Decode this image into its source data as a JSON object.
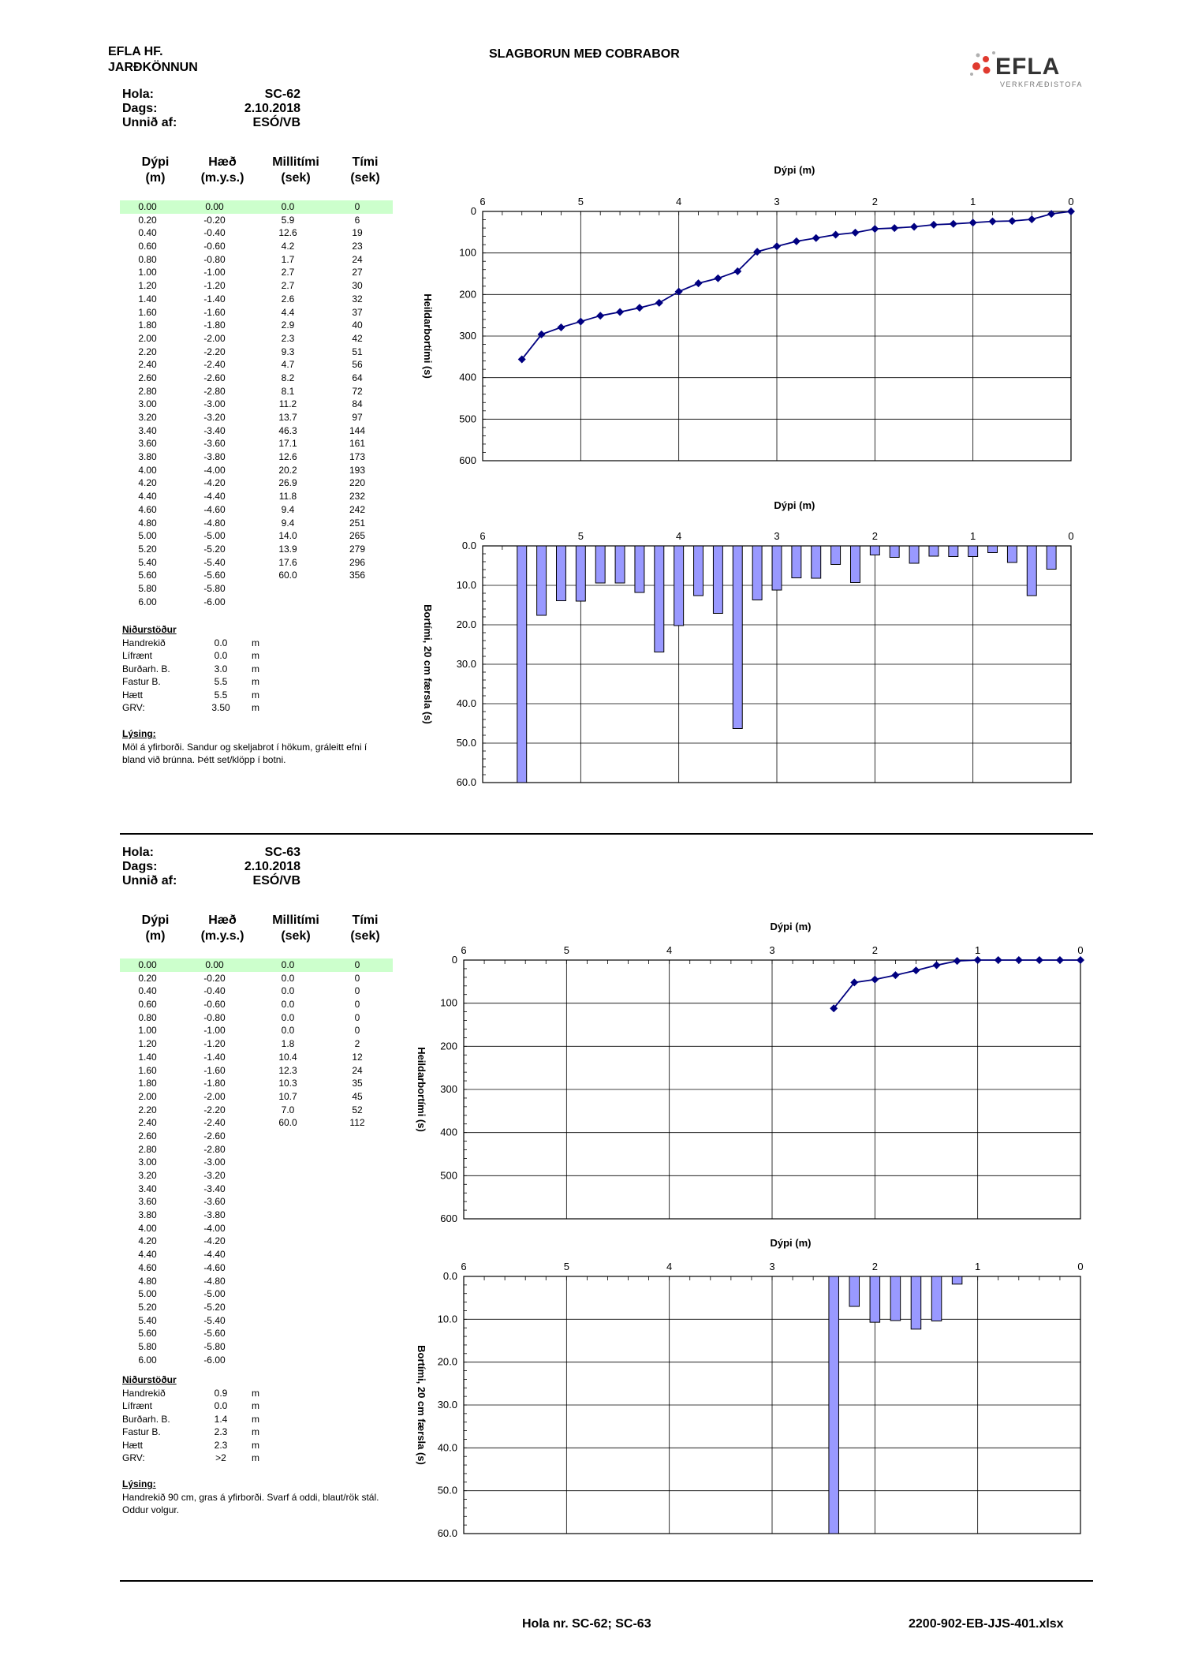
{
  "header": {
    "company": "EFLA HF.",
    "department": "JARÐKÖNNUN",
    "title": "SLAGBORUN MEÐ COBRABOR",
    "logo_text": "EFLA",
    "logo_sub": "VERKFRÆÐISTOFA"
  },
  "labels": {
    "hola": "Hola:",
    "dags": "Dags:",
    "unnid": "Unnið af:",
    "col_depth_1": "Dýpi",
    "col_depth_2": "(m)",
    "col_height_1": "Hæð",
    "col_height_2": "(m.y.s.)",
    "col_inter_1": "Millitími",
    "col_inter_2": "(sek)",
    "col_time_1": "Tími",
    "col_time_2": "(sek)",
    "results_title": "Niðurstöður",
    "description_title": "Lýsing:"
  },
  "holes": [
    {
      "id": "SC-62",
      "date": "2.10.2018",
      "by": "ESÓ/VB",
      "table": [
        [
          "0.00",
          "0.00",
          "0.0",
          "0"
        ],
        [
          "0.20",
          "-0.20",
          "5.9",
          "6"
        ],
        [
          "0.40",
          "-0.40",
          "12.6",
          "19"
        ],
        [
          "0.60",
          "-0.60",
          "4.2",
          "23"
        ],
        [
          "0.80",
          "-0.80",
          "1.7",
          "24"
        ],
        [
          "1.00",
          "-1.00",
          "2.7",
          "27"
        ],
        [
          "1.20",
          "-1.20",
          "2.7",
          "30"
        ],
        [
          "1.40",
          "-1.40",
          "2.6",
          "32"
        ],
        [
          "1.60",
          "-1.60",
          "4.4",
          "37"
        ],
        [
          "1.80",
          "-1.80",
          "2.9",
          "40"
        ],
        [
          "2.00",
          "-2.00",
          "2.3",
          "42"
        ],
        [
          "2.20",
          "-2.20",
          "9.3",
          "51"
        ],
        [
          "2.40",
          "-2.40",
          "4.7",
          "56"
        ],
        [
          "2.60",
          "-2.60",
          "8.2",
          "64"
        ],
        [
          "2.80",
          "-2.80",
          "8.1",
          "72"
        ],
        [
          "3.00",
          "-3.00",
          "11.2",
          "84"
        ],
        [
          "3.20",
          "-3.20",
          "13.7",
          "97"
        ],
        [
          "3.40",
          "-3.40",
          "46.3",
          "144"
        ],
        [
          "3.60",
          "-3.60",
          "17.1",
          "161"
        ],
        [
          "3.80",
          "-3.80",
          "12.6",
          "173"
        ],
        [
          "4.00",
          "-4.00",
          "20.2",
          "193"
        ],
        [
          "4.20",
          "-4.20",
          "26.9",
          "220"
        ],
        [
          "4.40",
          "-4.40",
          "11.8",
          "232"
        ],
        [
          "4.60",
          "-4.60",
          "9.4",
          "242"
        ],
        [
          "4.80",
          "-4.80",
          "9.4",
          "251"
        ],
        [
          "5.00",
          "-5.00",
          "14.0",
          "265"
        ],
        [
          "5.20",
          "-5.20",
          "13.9",
          "279"
        ],
        [
          "5.40",
          "-5.40",
          "17.6",
          "296"
        ],
        [
          "5.60",
          "-5.60",
          "60.0",
          "356"
        ],
        [
          "5.80",
          "-5.80",
          "",
          ""
        ],
        [
          "6.00",
          "-6.00",
          "",
          ""
        ]
      ],
      "results": [
        {
          "label": "Handrekið",
          "value": "0.0",
          "unit": "m"
        },
        {
          "label": "Lífrænt",
          "value": "0.0",
          "unit": "m"
        },
        {
          "label": "Burðarh. B.",
          "value": "3.0",
          "unit": "m"
        },
        {
          "label": "Fastur B.",
          "value": "5.5",
          "unit": "m"
        },
        {
          "label": "Hætt",
          "value": "5.5",
          "unit": "m"
        },
        {
          "label": "GRV:",
          "value": "3.50",
          "unit": "m"
        }
      ],
      "description": "Möl á yfirborði. Sandur og skeljabrot í hökum, gráleitt efni í bland við brúnna. Þétt set/klöpp í botni."
    },
    {
      "id": "SC-63",
      "date": "2.10.2018",
      "by": "ESÓ/VB",
      "table": [
        [
          "0.00",
          "0.00",
          "0.0",
          "0"
        ],
        [
          "0.20",
          "-0.20",
          "0.0",
          "0"
        ],
        [
          "0.40",
          "-0.40",
          "0.0",
          "0"
        ],
        [
          "0.60",
          "-0.60",
          "0.0",
          "0"
        ],
        [
          "0.80",
          "-0.80",
          "0.0",
          "0"
        ],
        [
          "1.00",
          "-1.00",
          "0.0",
          "0"
        ],
        [
          "1.20",
          "-1.20",
          "1.8",
          "2"
        ],
        [
          "1.40",
          "-1.40",
          "10.4",
          "12"
        ],
        [
          "1.60",
          "-1.60",
          "12.3",
          "24"
        ],
        [
          "1.80",
          "-1.80",
          "10.3",
          "35"
        ],
        [
          "2.00",
          "-2.00",
          "10.7",
          "45"
        ],
        [
          "2.20",
          "-2.20",
          "7.0",
          "52"
        ],
        [
          "2.40",
          "-2.40",
          "60.0",
          "112"
        ],
        [
          "2.60",
          "-2.60",
          "",
          ""
        ],
        [
          "2.80",
          "-2.80",
          "",
          ""
        ],
        [
          "3.00",
          "-3.00",
          "",
          ""
        ],
        [
          "3.20",
          "-3.20",
          "",
          ""
        ],
        [
          "3.40",
          "-3.40",
          "",
          ""
        ],
        [
          "3.60",
          "-3.60",
          "",
          ""
        ],
        [
          "3.80",
          "-3.80",
          "",
          ""
        ],
        [
          "4.00",
          "-4.00",
          "",
          ""
        ],
        [
          "4.20",
          "-4.20",
          "",
          ""
        ],
        [
          "4.40",
          "-4.40",
          "",
          ""
        ],
        [
          "4.60",
          "-4.60",
          "",
          ""
        ],
        [
          "4.80",
          "-4.80",
          "",
          ""
        ],
        [
          "5.00",
          "-5.00",
          "",
          ""
        ],
        [
          "5.20",
          "-5.20",
          "",
          ""
        ],
        [
          "5.40",
          "-5.40",
          "",
          ""
        ],
        [
          "5.60",
          "-5.60",
          "",
          ""
        ],
        [
          "5.80",
          "-5.80",
          "",
          ""
        ],
        [
          "6.00",
          "-6.00",
          "",
          ""
        ]
      ],
      "results": [
        {
          "label": "Handrekið",
          "value": "0.9",
          "unit": "m"
        },
        {
          "label": "Lífrænt",
          "value": "0.0",
          "unit": "m"
        },
        {
          "label": "Burðarh. B.",
          "value": "1.4",
          "unit": "m"
        },
        {
          "label": "Fastur B.",
          "value": "2.3",
          "unit": "m"
        },
        {
          "label": "Hætt",
          "value": "2.3",
          "unit": "m"
        },
        {
          "label": "GRV:",
          "value": ">2",
          "unit": "m"
        }
      ],
      "description": "Handrekið 90 cm, gras á yfirborði. Svarf á oddi, blaut/rök stál. Oddur volgur."
    }
  ],
  "chart_data": [
    {
      "type": "line",
      "hole": "SC-62",
      "xlabel": "Dýpi (m)",
      "ylabel": "Heildarbortími (s)",
      "xlim": [
        6,
        0
      ],
      "ylim": [
        600,
        0
      ],
      "x_ticks": [
        6,
        5,
        4,
        3,
        2,
        1,
        0
      ],
      "y_ticks": [
        0,
        100,
        200,
        300,
        400,
        500,
        600
      ],
      "x": [
        0,
        0.2,
        0.4,
        0.6,
        0.8,
        1.0,
        1.2,
        1.4,
        1.6,
        1.8,
        2.0,
        2.2,
        2.4,
        2.6,
        2.8,
        3.0,
        3.2,
        3.4,
        3.6,
        3.8,
        4.0,
        4.2,
        4.4,
        4.6,
        4.8,
        5.0,
        5.2,
        5.4,
        5.6
      ],
      "y": [
        0,
        6,
        19,
        23,
        24,
        27,
        30,
        32,
        37,
        40,
        42,
        51,
        56,
        64,
        72,
        84,
        97,
        144,
        161,
        173,
        193,
        220,
        232,
        242,
        251,
        265,
        279,
        296,
        356
      ],
      "color": "#000080"
    },
    {
      "type": "bar",
      "hole": "SC-62",
      "xlabel": "Dýpi (m)",
      "ylabel": "Bortími, 20 cm færsla (s)",
      "xlim": [
        6,
        0
      ],
      "ylim": [
        60,
        0
      ],
      "x_ticks": [
        6,
        5,
        4,
        3,
        2,
        1,
        0
      ],
      "y_ticks": [
        "0.0",
        "10.0",
        "20.0",
        "30.0",
        "40.0",
        "50.0",
        "60.0"
      ],
      "x": [
        0.2,
        0.4,
        0.6,
        0.8,
        1.0,
        1.2,
        1.4,
        1.6,
        1.8,
        2.0,
        2.2,
        2.4,
        2.6,
        2.8,
        3.0,
        3.2,
        3.4,
        3.6,
        3.8,
        4.0,
        4.2,
        4.4,
        4.6,
        4.8,
        5.0,
        5.2,
        5.4,
        5.6
      ],
      "values": [
        5.9,
        12.6,
        4.2,
        1.7,
        2.7,
        2.7,
        2.6,
        4.4,
        2.9,
        2.3,
        9.3,
        4.7,
        8.2,
        8.1,
        11.2,
        13.7,
        46.3,
        17.1,
        12.6,
        20.2,
        26.9,
        11.8,
        9.4,
        9.4,
        14.0,
        13.9,
        17.6,
        60.0
      ],
      "color": "#9999ff"
    },
    {
      "type": "line",
      "hole": "SC-63",
      "xlabel": "Dýpi (m)",
      "ylabel": "Heildarbortími (s)",
      "xlim": [
        6,
        0
      ],
      "ylim": [
        600,
        0
      ],
      "x_ticks": [
        6,
        5,
        4,
        3,
        2,
        1,
        0
      ],
      "y_ticks": [
        0,
        100,
        200,
        300,
        400,
        500,
        600
      ],
      "x": [
        0,
        0.2,
        0.4,
        0.6,
        0.8,
        1.0,
        1.2,
        1.4,
        1.6,
        1.8,
        2.0,
        2.2,
        2.4
      ],
      "y": [
        0,
        0,
        0,
        0,
        0,
        0,
        2,
        12,
        24,
        35,
        45,
        52,
        112
      ],
      "color": "#000080"
    },
    {
      "type": "bar",
      "hole": "SC-63",
      "xlabel": "Dýpi (m)",
      "ylabel": "Bortími, 20 cm færsla (s)",
      "xlim": [
        6,
        0
      ],
      "ylim": [
        60,
        0
      ],
      "x_ticks": [
        6,
        5,
        4,
        3,
        2,
        1,
        0
      ],
      "y_ticks": [
        "0.0",
        "10.0",
        "20.0",
        "30.0",
        "40.0",
        "50.0",
        "60.0"
      ],
      "x": [
        0.2,
        0.4,
        0.6,
        0.8,
        1.0,
        1.2,
        1.4,
        1.6,
        1.8,
        2.0,
        2.2,
        2.4
      ],
      "values": [
        0.0,
        0.0,
        0.0,
        0.0,
        0.0,
        1.8,
        10.4,
        12.3,
        10.3,
        10.7,
        7.0,
        60.0
      ],
      "color": "#9999ff"
    }
  ],
  "footer": {
    "holes": "Hola nr. SC-62; SC-63",
    "file": "2200-902-EB-JJS-401.xlsx"
  }
}
